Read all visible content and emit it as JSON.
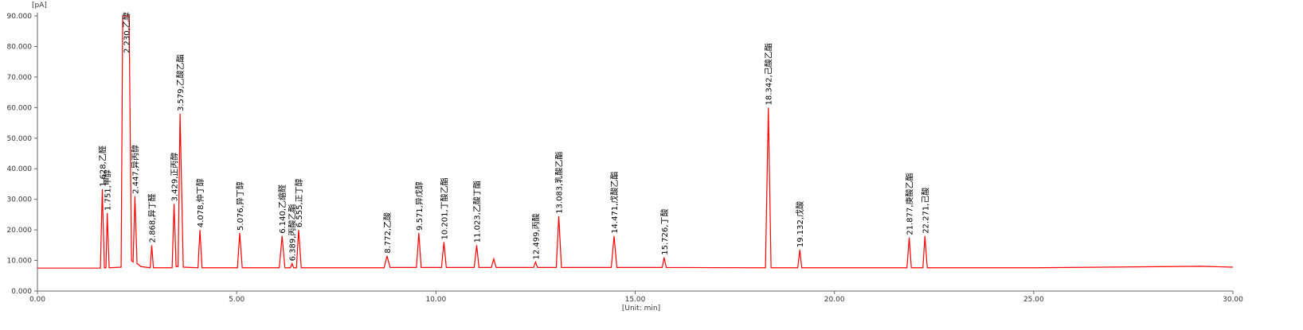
{
  "chart_data": {
    "type": "line",
    "y_unit_label": "[pA]",
    "x_axis_label": "[Unit: min]",
    "xlim": [
      0,
      30
    ],
    "ylim": [
      0,
      90
    ],
    "xticks": [
      {
        "value": 0,
        "label": "0.00"
      },
      {
        "value": 5,
        "label": "5.00"
      },
      {
        "value": 10,
        "label": "10.00"
      },
      {
        "value": 15,
        "label": "15.00"
      },
      {
        "value": 20,
        "label": "20.00"
      },
      {
        "value": 25,
        "label": "25.00"
      },
      {
        "value": 30,
        "label": "30.00"
      }
    ],
    "yticks": [
      {
        "value": 0,
        "label": "0.000"
      },
      {
        "value": 10,
        "label": "10.000"
      },
      {
        "value": 20,
        "label": "20.000"
      },
      {
        "value": 30,
        "label": "30.000"
      },
      {
        "value": 40,
        "label": "40.000"
      },
      {
        "value": 50,
        "label": "50.000"
      },
      {
        "value": 60,
        "label": "60.000"
      },
      {
        "value": 70,
        "label": "70.000"
      },
      {
        "value": 80,
        "label": "80.000"
      },
      {
        "value": 90,
        "label": "90.000"
      }
    ],
    "x": [
      0,
      1.58,
      1.628,
      1.68,
      1.72,
      1.751,
      1.8,
      2.1,
      2.14,
      2.3,
      2.36,
      2.4,
      2.447,
      2.5,
      2.6,
      2.83,
      2.868,
      2.91,
      3.38,
      3.429,
      3.48,
      3.53,
      3.579,
      3.66,
      4.03,
      4.078,
      4.13,
      5.02,
      5.076,
      5.14,
      6.07,
      6.14,
      6.21,
      6.35,
      6.389,
      6.43,
      6.5,
      6.555,
      6.62,
      8.7,
      8.772,
      8.85,
      9.51,
      9.571,
      9.63,
      10.14,
      10.201,
      10.26,
      10.96,
      11.023,
      11.08,
      11.39,
      11.45,
      11.51,
      12.45,
      12.499,
      12.55,
      13.02,
      13.083,
      13.15,
      14.4,
      14.471,
      14.54,
      15.68,
      15.726,
      15.78,
      18.27,
      18.342,
      18.41,
      19.08,
      19.132,
      19.18,
      21.82,
      21.877,
      21.93,
      22.22,
      22.271,
      22.33,
      25,
      29.2,
      30
    ],
    "series": [
      {
        "color": "#ff0000",
        "values": [
          7.5,
          7.5,
          33.3,
          7.6,
          7.6,
          25.5,
          7.6,
          7.8,
          90,
          90,
          10,
          9.5,
          31,
          9,
          8,
          7.6,
          15,
          7.6,
          7.6,
          28.5,
          8,
          8,
          58,
          7.8,
          7.6,
          20,
          7.6,
          7.6,
          19,
          7.6,
          7.6,
          18,
          7.6,
          7.6,
          9,
          7.6,
          7.6,
          20,
          7.6,
          7.6,
          11.5,
          7.7,
          7.7,
          19,
          7.7,
          7.7,
          16,
          7.7,
          7.7,
          15,
          7.7,
          7.7,
          10.5,
          7.7,
          7.7,
          9.5,
          7.7,
          7.7,
          24.5,
          7.7,
          7.7,
          18,
          7.7,
          7.7,
          11,
          7.7,
          7.6,
          60,
          7.6,
          7.6,
          13.5,
          7.6,
          7.6,
          17.5,
          7.6,
          7.6,
          18,
          7.6,
          7.6,
          8.1,
          7.8
        ]
      }
    ],
    "annotations": [
      {
        "text": "1.628,乙醛",
        "x": 1.628,
        "y": 33.3
      },
      {
        "text": "1.751,甲醇",
        "x": 1.751,
        "y": 25.5
      },
      {
        "text": "2.230,乙醇",
        "x": 2.23,
        "y": 77
      },
      {
        "text": "2.447,异丙醇",
        "x": 2.447,
        "y": 31
      },
      {
        "text": "2.868,异丁醛",
        "x": 2.868,
        "y": 15
      },
      {
        "text": "3.429,正丙醇",
        "x": 3.429,
        "y": 28.5
      },
      {
        "text": "3.579,乙酸乙酯",
        "x": 3.579,
        "y": 58
      },
      {
        "text": "4.078,仲丁醇",
        "x": 4.078,
        "y": 20
      },
      {
        "text": "5.076,异丁醇",
        "x": 5.076,
        "y": 19
      },
      {
        "text": "6.140,乙缩醛",
        "x": 6.14,
        "y": 18
      },
      {
        "text": "6.389,丙酸乙酯",
        "x": 6.389,
        "y": 9
      },
      {
        "text": "6.555,正丁醇",
        "x": 6.555,
        "y": 20
      },
      {
        "text": "8.772,乙酸",
        "x": 8.772,
        "y": 11.5
      },
      {
        "text": "9.571,异戊醇",
        "x": 9.571,
        "y": 19
      },
      {
        "text": "10.201,丁酸乙酯",
        "x": 10.201,
        "y": 16
      },
      {
        "text": "11.023,乙酸丁酯",
        "x": 11.023,
        "y": 15
      },
      {
        "text": "12.499,丙酸",
        "x": 12.499,
        "y": 9.5
      },
      {
        "text": "13.083,乳酸乙酯",
        "x": 13.083,
        "y": 24.5
      },
      {
        "text": "14.471,戊酸乙酯",
        "x": 14.471,
        "y": 18
      },
      {
        "text": "15.726,丁酸",
        "x": 15.726,
        "y": 11
      },
      {
        "text": "18.342,己酸乙酯",
        "x": 18.342,
        "y": 60
      },
      {
        "text": "19.132,戊酸",
        "x": 19.132,
        "y": 13.5
      },
      {
        "text": "21.877,庚酸乙酯",
        "x": 21.877,
        "y": 17.5
      },
      {
        "text": "22.271,己酸",
        "x": 22.271,
        "y": 18
      }
    ]
  }
}
